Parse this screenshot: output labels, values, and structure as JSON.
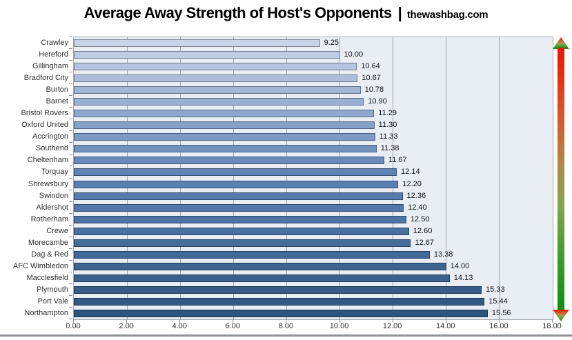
{
  "title": {
    "main": "Average Away Strength of Host's Opponents",
    "separator": "|",
    "site": "thewashbag.com"
  },
  "chart_data": {
    "type": "bar",
    "orientation": "horizontal",
    "title": "Average Away Strength of Host's Opponents | thewashbag.com",
    "xlabel": "",
    "ylabel": "",
    "xlim": [
      0,
      18
    ],
    "grid": "vertical",
    "legend": "none",
    "x_tick_values": [
      0,
      2,
      4,
      6,
      8,
      10,
      12,
      14,
      16,
      18
    ],
    "x_tick_labels": [
      "0.00",
      "2.00",
      "4.00",
      "6.00",
      "8.00",
      "10.00",
      "12.00",
      "14.00",
      "16.00",
      "18.00"
    ],
    "categories": [
      "Crawley",
      "Hereford",
      "Gillingham",
      "Bradford City",
      "Burton",
      "Barnet",
      "Bristol Rovers",
      "Oxford United",
      "Accrington",
      "Southend",
      "Cheltenham",
      "Torquay",
      "Shrewsbury",
      "Swindon",
      "Aldershot",
      "Rotherham",
      "Crewe",
      "Morecambe",
      "Dag & Red",
      "AFC Wimbledon",
      "Macclesfield",
      "Plymouth",
      "Port Vale",
      "Northampton"
    ],
    "values": [
      9.25,
      10.0,
      10.64,
      10.67,
      10.78,
      10.9,
      11.29,
      11.3,
      11.33,
      11.38,
      11.67,
      12.14,
      12.2,
      12.36,
      12.4,
      12.5,
      12.6,
      12.67,
      13.38,
      14.0,
      14.13,
      15.33,
      15.44,
      15.56
    ],
    "value_labels": [
      "9.25",
      "10.00",
      "10.64",
      "10.67",
      "10.78",
      "10.90",
      "11.29",
      "11.30",
      "11.33",
      "11.38",
      "11.67",
      "12.14",
      "12.20",
      "12.36",
      "12.40",
      "12.50",
      "12.60",
      "12.67",
      "13.38",
      "14.00",
      "14.13",
      "15.33",
      "15.44",
      "15.56"
    ],
    "bar_colors": [
      "#C9D4E8",
      "#BFCDE4",
      "#B6C5DF",
      "#ACBEDA",
      "#A2B7D6",
      "#98B0D1",
      "#8FA8CD",
      "#85A1C8",
      "#7B9AC4",
      "#7192BF",
      "#688BBB",
      "#5E84B6",
      "#5A80B2",
      "#567CAD",
      "#5278A9",
      "#4E74A4",
      "#4A70A0",
      "#466C9B",
      "#426897",
      "#3E6492",
      "#3A618E",
      "#365D89",
      "#325985",
      "#2E5580"
    ],
    "plot_bg": "#E9EDF4",
    "gridline_color": "#9FA3AB",
    "gradient_arrow": {
      "meaning": "strength scale",
      "top_color": "#EB1500",
      "bottom_color": "#0F8F0F"
    }
  }
}
